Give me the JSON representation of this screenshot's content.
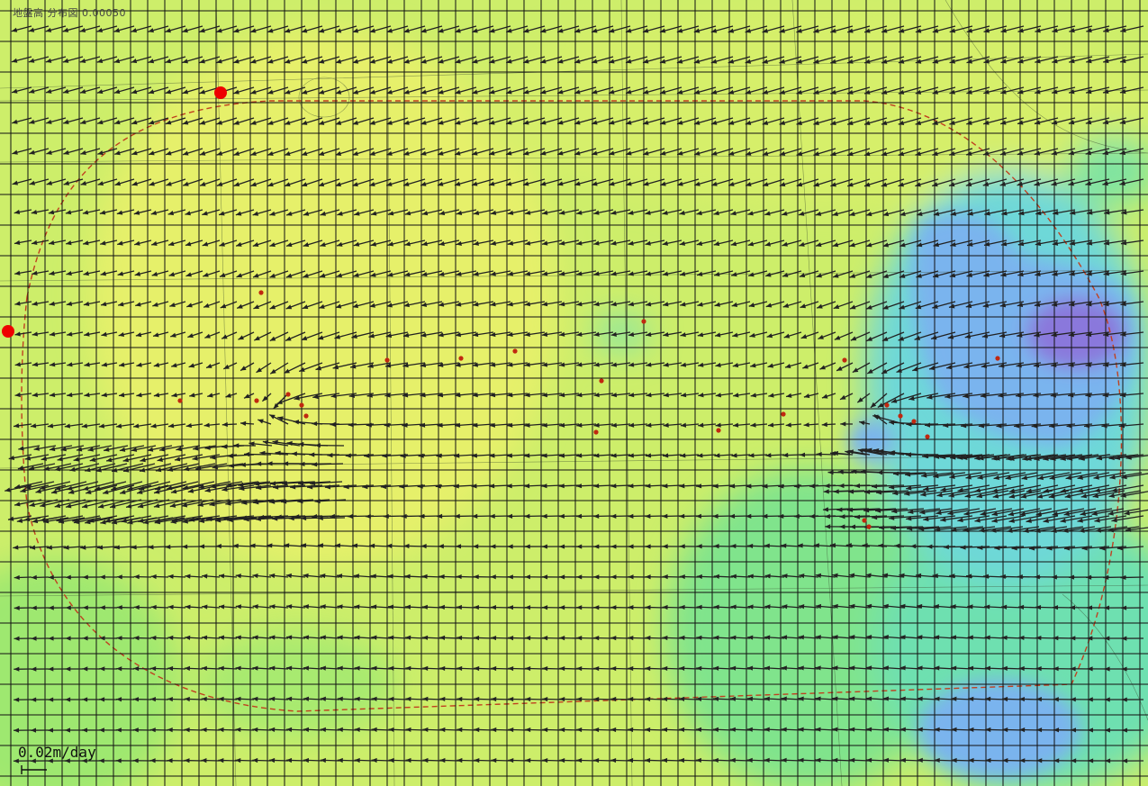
{
  "map": {
    "corner_text": "地盤高 分布図 0.00050",
    "scale_label": "0.02m/day",
    "colors": {
      "yellow": "#e8f06a",
      "yellow_green": "#cdee6a",
      "green": "#9ee870",
      "teal": "#6ee0a4",
      "cyan": "#6ed8e8",
      "blue": "#7ab4ee",
      "violet": "#8a78dc",
      "grid": "#111111",
      "arrow": "#222222",
      "boundary": "#c04020",
      "marker": "#ee0000"
    },
    "markers": [
      "observation-point-north",
      "observation-point-west"
    ]
  }
}
